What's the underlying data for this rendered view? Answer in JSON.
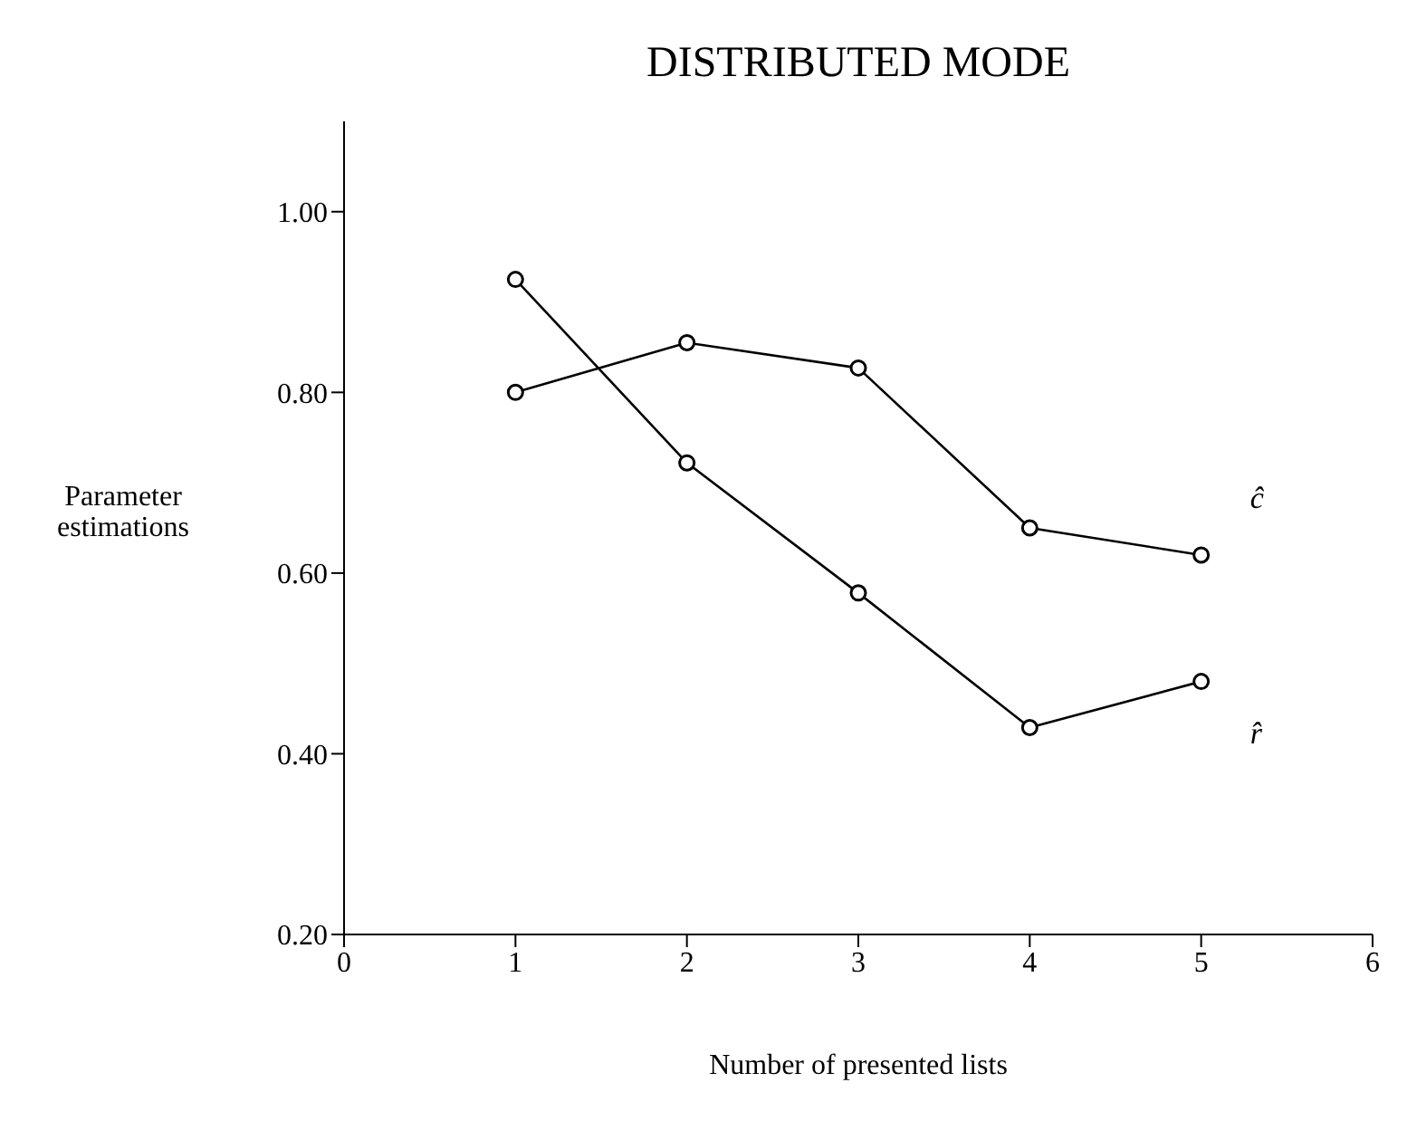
{
  "chart_data": {
    "type": "line",
    "title": "DISTRIBUTED MODE",
    "xlabel": "Number of presented lists",
    "ylabel": "Parameter\nestimations",
    "x": [
      1,
      2,
      3,
      4,
      5
    ],
    "series": [
      {
        "name": "ĉ",
        "color": "#000000",
        "values": [
          0.8,
          0.855,
          0.827,
          0.65,
          0.62
        ]
      },
      {
        "name": "r̂",
        "color": "#000000",
        "values": [
          0.925,
          0.722,
          0.578,
          0.429,
          0.48
        ]
      }
    ],
    "xlim": [
      0,
      6
    ],
    "xticks": [
      0,
      1,
      2,
      3,
      4,
      5,
      6
    ],
    "ylim": [
      0.2,
      1.1
    ],
    "yticks": [
      {
        "value": 0.2,
        "label": "0.20"
      },
      {
        "value": 0.4,
        "label": "0.40"
      },
      {
        "value": 0.6,
        "label": "0.60"
      },
      {
        "value": 0.8,
        "label": "0.80"
      },
      {
        "value": 1.0,
        "label": "1.00"
      }
    ],
    "grid": false,
    "legend": false,
    "marker": "circle",
    "line_style": "solid"
  }
}
